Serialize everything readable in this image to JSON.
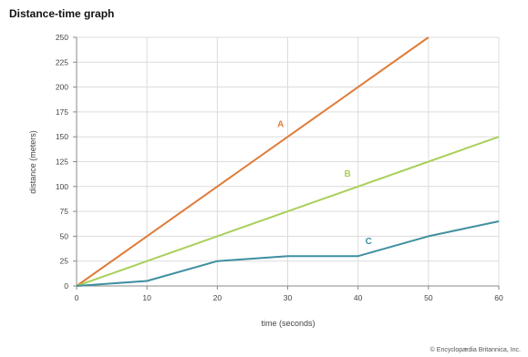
{
  "chart_data": {
    "type": "line",
    "title": "Distance-time graph",
    "xlabel": "time (seconds)",
    "ylabel": "distance (meters)",
    "xlim": [
      0,
      60
    ],
    "ylim": [
      0,
      250
    ],
    "x_ticks": [
      "0",
      "10",
      "20",
      "30",
      "40",
      "50",
      "60"
    ],
    "y_ticks": [
      "0",
      "25",
      "50",
      "75",
      "100",
      "125",
      "150",
      "175",
      "200",
      "225",
      "250"
    ],
    "grid": true,
    "series": [
      {
        "name": "A",
        "color": "#e07b39",
        "x": [
          0,
          10,
          20,
          30,
          40,
          50
        ],
        "y": [
          0,
          50,
          100,
          150,
          200,
          250
        ],
        "label_at": [
          29,
          160
        ]
      },
      {
        "name": "B",
        "color": "#a8d05a",
        "x": [
          0,
          10,
          20,
          30,
          40,
          50,
          60
        ],
        "y": [
          0,
          25,
          50,
          75,
          100,
          125,
          150
        ],
        "label_at": [
          38.5,
          110
        ]
      },
      {
        "name": "C",
        "color": "#3f8fa0",
        "x": [
          0,
          10,
          20,
          30,
          40,
          50,
          60
        ],
        "y": [
          0,
          5,
          25,
          30,
          30,
          50,
          65
        ],
        "label_at": [
          41.5,
          42
        ]
      }
    ]
  },
  "credit": "© Encyclopædia Britannica, Inc."
}
